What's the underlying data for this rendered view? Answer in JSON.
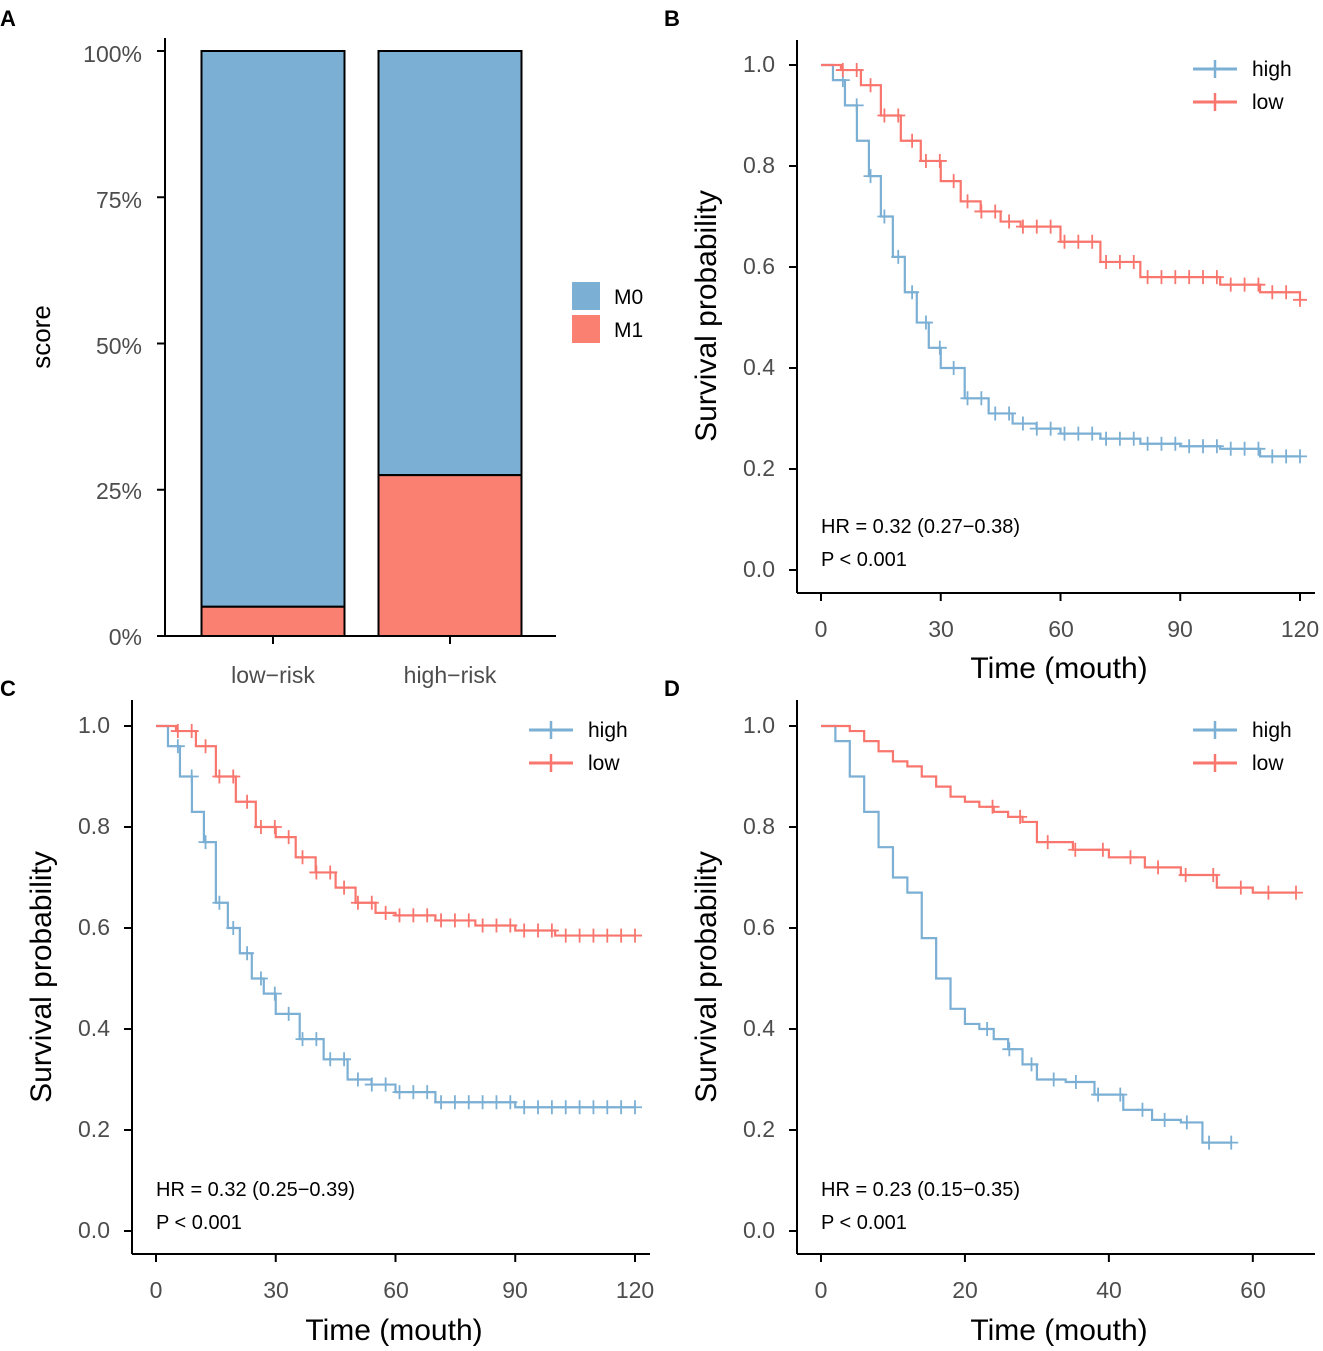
{
  "colors": {
    "high": "#7BAFD4",
    "low": "#F8766D",
    "m0": "#7BAFD4",
    "m1": "#FA8072"
  },
  "panelA": {
    "letter": "A",
    "ylabel": "score",
    "yticks": [
      "0%",
      "25%",
      "50%",
      "75%",
      "100%"
    ],
    "legend": [
      "M0",
      "M1"
    ]
  },
  "km_common": {
    "ylabel": "Survival probability",
    "xlabel": "Time (mouth)",
    "yticks": [
      "0.0",
      "0.2",
      "0.4",
      "0.6",
      "0.8",
      "1.0"
    ],
    "legend": [
      "high",
      "low"
    ]
  },
  "panelB": {
    "letter": "B",
    "xticks": [
      "0",
      "30",
      "60",
      "90",
      "120"
    ],
    "hr": "HR = 0.32 (0.27−0.38)",
    "p": "P < 0.001"
  },
  "panelC": {
    "letter": "C",
    "xticks": [
      "0",
      "30",
      "60",
      "90",
      "120"
    ],
    "hr": "HR = 0.32 (0.25−0.39)",
    "p": "P < 0.001"
  },
  "panelD": {
    "letter": "D",
    "xticks": [
      "0",
      "20",
      "40",
      "60"
    ],
    "hr": "HR = 0.23 (0.15−0.35)",
    "p": "P < 0.001"
  },
  "chart_data": [
    {
      "type": "bar",
      "stacked": true,
      "title": "",
      "xlabel": "",
      "ylabel": "score",
      "ylim": [
        0,
        1
      ],
      "categories": [
        "low−risk",
        "high−risk"
      ],
      "series": [
        {
          "name": "M1",
          "values": [
            0.05,
            0.275
          ]
        },
        {
          "name": "M0",
          "values": [
            0.95,
            0.725
          ]
        }
      ]
    },
    {
      "type": "line",
      "subtype": "kaplan-meier",
      "xlabel": "Time (mouth)",
      "ylabel": "Survival probability",
      "xlim": [
        0,
        120
      ],
      "ylim": [
        0,
        1
      ],
      "series": [
        {
          "name": "high",
          "x": [
            0,
            3,
            6,
            9,
            12,
            15,
            18,
            21,
            24,
            27,
            30,
            36,
            42,
            48,
            54,
            60,
            70,
            80,
            90,
            100,
            110,
            120
          ],
          "y": [
            1.0,
            0.97,
            0.92,
            0.85,
            0.78,
            0.7,
            0.62,
            0.55,
            0.49,
            0.44,
            0.4,
            0.34,
            0.31,
            0.29,
            0.28,
            0.27,
            0.26,
            0.25,
            0.245,
            0.24,
            0.225,
            0.225
          ]
        },
        {
          "name": "low",
          "x": [
            0,
            5,
            10,
            15,
            20,
            25,
            30,
            35,
            40,
            45,
            50,
            60,
            70,
            80,
            90,
            100,
            110,
            120
          ],
          "y": [
            1.0,
            0.99,
            0.96,
            0.9,
            0.85,
            0.81,
            0.77,
            0.73,
            0.71,
            0.69,
            0.68,
            0.65,
            0.61,
            0.58,
            0.58,
            0.565,
            0.55,
            0.535
          ]
        }
      ]
    },
    {
      "type": "line",
      "subtype": "kaplan-meier",
      "xlabel": "Time (mouth)",
      "ylabel": "Survival probability",
      "xlim": [
        0,
        120
      ],
      "ylim": [
        0,
        1
      ],
      "series": [
        {
          "name": "high",
          "x": [
            0,
            3,
            6,
            9,
            12,
            15,
            18,
            21,
            24,
            27,
            30,
            36,
            42,
            48,
            54,
            60,
            70,
            80,
            90,
            100,
            110,
            120
          ],
          "y": [
            1.0,
            0.96,
            0.9,
            0.83,
            0.77,
            0.65,
            0.6,
            0.55,
            0.5,
            0.47,
            0.43,
            0.38,
            0.34,
            0.3,
            0.29,
            0.275,
            0.255,
            0.255,
            0.245,
            0.245,
            0.245,
            0.245
          ]
        },
        {
          "name": "low",
          "x": [
            0,
            5,
            10,
            15,
            20,
            25,
            30,
            35,
            40,
            45,
            50,
            55,
            60,
            70,
            80,
            90,
            100,
            110,
            120
          ],
          "y": [
            1.0,
            0.99,
            0.96,
            0.9,
            0.85,
            0.8,
            0.78,
            0.74,
            0.71,
            0.68,
            0.65,
            0.63,
            0.625,
            0.615,
            0.605,
            0.595,
            0.585,
            0.585,
            0.585
          ]
        }
      ]
    },
    {
      "type": "line",
      "subtype": "kaplan-meier",
      "xlabel": "Time (mouth)",
      "ylabel": "Survival probability",
      "xlim": [
        0,
        66
      ],
      "ylim": [
        0,
        1
      ],
      "series": [
        {
          "name": "high",
          "x": [
            0,
            2,
            4,
            6,
            8,
            10,
            12,
            14,
            16,
            18,
            20,
            22,
            24,
            26,
            28,
            30,
            34,
            38,
            42,
            46,
            50,
            53,
            57
          ],
          "y": [
            1.0,
            0.97,
            0.9,
            0.83,
            0.76,
            0.7,
            0.67,
            0.58,
            0.5,
            0.44,
            0.41,
            0.4,
            0.38,
            0.36,
            0.33,
            0.3,
            0.295,
            0.27,
            0.24,
            0.22,
            0.215,
            0.175,
            0.175
          ]
        },
        {
          "name": "low",
          "x": [
            0,
            2,
            4,
            6,
            8,
            10,
            12,
            14,
            16,
            18,
            20,
            22,
            24,
            26,
            28,
            30,
            35,
            40,
            45,
            50,
            55,
            60,
            66
          ],
          "y": [
            1.0,
            1.0,
            0.99,
            0.97,
            0.95,
            0.93,
            0.92,
            0.9,
            0.88,
            0.86,
            0.85,
            0.84,
            0.83,
            0.82,
            0.81,
            0.77,
            0.755,
            0.74,
            0.72,
            0.705,
            0.68,
            0.67,
            0.67
          ]
        }
      ]
    }
  ]
}
